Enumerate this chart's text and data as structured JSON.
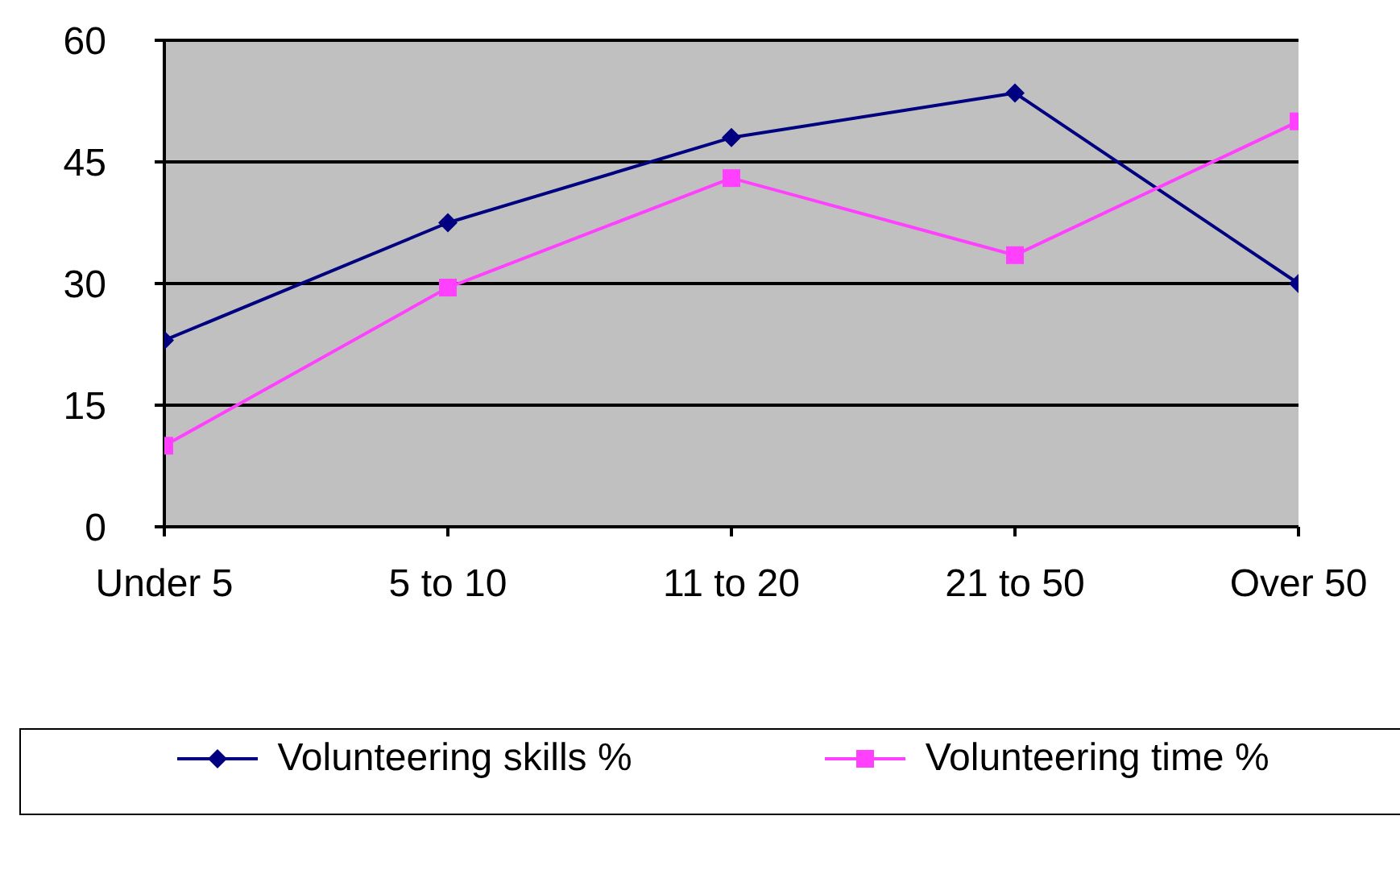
{
  "chart_data": {
    "type": "line",
    "categories": [
      "Under 5",
      "5 to 10",
      "11 to 20",
      "21 to 50",
      "Over 50"
    ],
    "series": [
      {
        "name": "Volunteering skills %",
        "color": "#000080",
        "marker": "diamond",
        "values": [
          23,
          37.5,
          48,
          53.5,
          30
        ]
      },
      {
        "name": "Volunteering time %",
        "color": "#ff40ff",
        "marker": "square",
        "values": [
          10,
          29.5,
          43,
          33.5,
          50
        ]
      }
    ],
    "ylim": [
      0,
      60
    ],
    "yticks": [
      0,
      15,
      30,
      45,
      60
    ],
    "grid": "y",
    "legend": "bottom"
  }
}
